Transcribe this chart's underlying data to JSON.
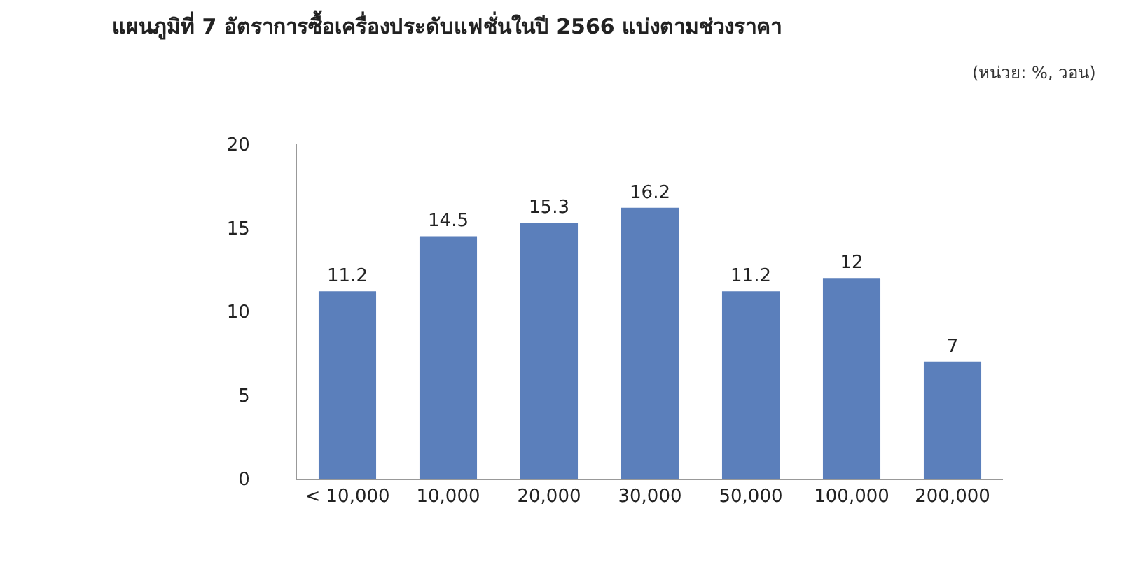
{
  "chart_data": {
    "type": "bar",
    "title": "แผนภูมิที่ 7 อัตราการซื้อเครื่องประดับแฟชั่นในปี 2566 แบ่งตามช่วงราคา",
    "annotations": [
      "(หน่วย: %, วอน)"
    ],
    "categories": [
      "< 10,000",
      "10,000",
      "20,000",
      "30,000",
      "50,000",
      "100,000",
      "200,000"
    ],
    "values": [
      11.2,
      14.5,
      15.3,
      16.2,
      11.2,
      12,
      7
    ],
    "color": "#5b7fbb",
    "ylim": [
      0,
      20
    ],
    "yticks": [
      0,
      5,
      10,
      15,
      20
    ],
    "data_labels": true,
    "grid": false
  }
}
